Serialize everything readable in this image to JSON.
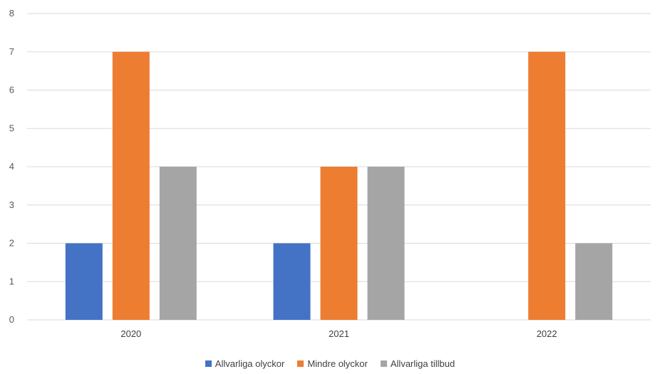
{
  "chart_data": {
    "type": "bar",
    "categories": [
      "2020",
      "2021",
      "2022"
    ],
    "series": [
      {
        "name": "Allvarliga olyckor",
        "color": "#4472C4",
        "values": [
          2,
          2,
          0
        ]
      },
      {
        "name": "Mindre olyckor",
        "color": "#ED7D31",
        "values": [
          7,
          4,
          7
        ]
      },
      {
        "name": "Allvarliga tillbud",
        "color": "#A5A5A5",
        "values": [
          4,
          4,
          2
        ]
      }
    ],
    "ylim": [
      0,
      8
    ],
    "yticks": [
      "0",
      "1",
      "2",
      "3",
      "4",
      "5",
      "6",
      "7",
      "8"
    ],
    "grid": true,
    "legend_position": "bottom",
    "gridline_color": "#D9D9D9"
  }
}
